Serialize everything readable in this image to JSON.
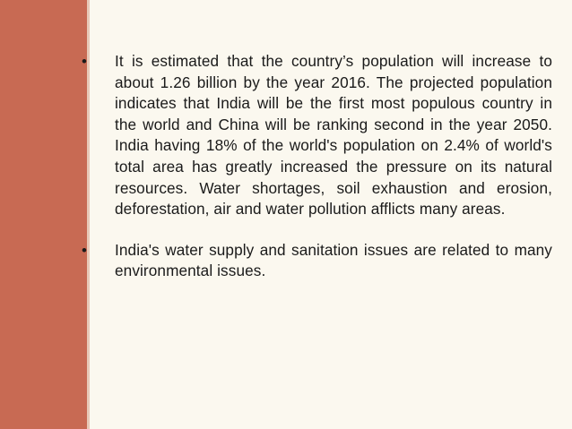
{
  "colors": {
    "side_band": "#c86a53",
    "background": "#fbf8ef",
    "text": "#1a1a1a"
  },
  "slide": {
    "bullets": [
      {
        "marker": "•",
        "text": "It is estimated that the country’s population will increase to about 1.26 billion by the year 2016. The projected population indicates that India will be the first most populous country in the world and China will be ranking second in the year 2050. India having 18% of the world's population on 2.4% of world's total area has greatly increased the pressure on its natural resources. Water shortages, soil exhaustion and erosion, deforestation, air and water pollution afflicts many areas."
      },
      {
        "marker": "•",
        "text": "India's water supply and sanitation issues are related to many environmental issues."
      }
    ]
  }
}
